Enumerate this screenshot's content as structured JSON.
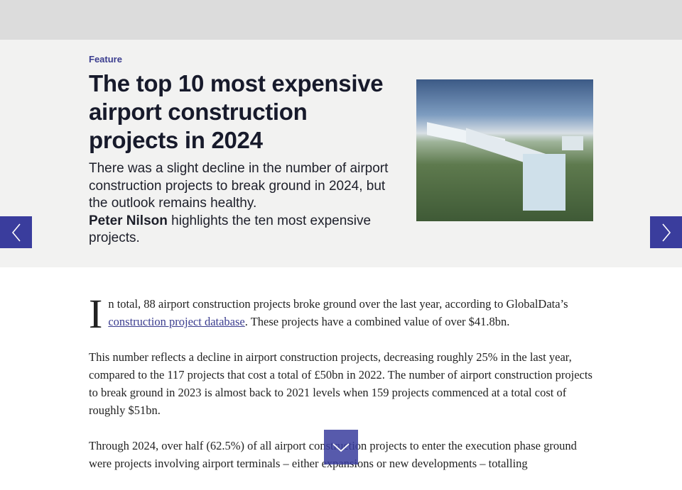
{
  "hero": {
    "kicker": "Feature",
    "title": "The top 10 most expensive airport construction projects in 2024",
    "standfirst": "There was a slight decline in the number of airport construction projects to break ground in 2024, but the outlook remains healthy.",
    "author": "Peter Nilson",
    "standfirst_tail": " highlights the ten most expensive projects."
  },
  "nav": {
    "prev_icon": "chevron-left-icon",
    "next_icon": "chevron-right-icon",
    "accent": "#3a3d9d"
  },
  "article": {
    "p1_dropcap": "I",
    "p1_start": "n total, 88 airport construction projects broke ground over the last year, according to GlobalData’s ",
    "p1_link": "construction project database",
    "p1_end": ". These projects have a combined value of over $41.8bn.",
    "p2": "This number reflects a decline in airport construction projects, decreasing roughly 25% in the last year, compared to the 117 projects that cost a total of £50bn in 2022. The number of airport construction projects to break ground in 2023 is almost back to 2021 levels when 159 projects commenced at a total cost of roughly $51bn.",
    "p3": "Through 2024, over half (62.5%) of all airport construction projects to enter the execution phase ground were projects involving airport terminals – either expansions or new developments – totalling"
  },
  "scroll": {
    "icon": "chevron-down-icon"
  }
}
